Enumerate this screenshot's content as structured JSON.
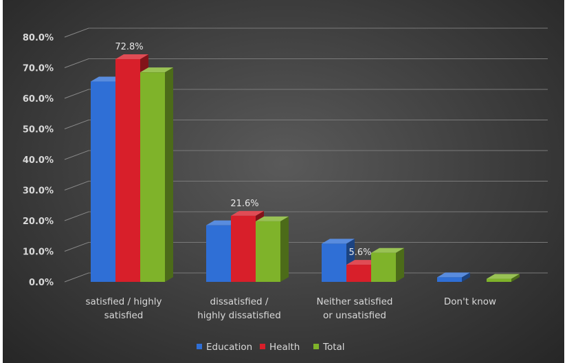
{
  "chart_data": {
    "type": "bar",
    "categories": [
      [
        "satisfied / highly",
        "satisfied"
      ],
      [
        "dissatisfied /",
        "highly dissatisfied"
      ],
      [
        "Neither satisfied",
        "or unsatisfied"
      ],
      [
        "Don't know"
      ]
    ],
    "series": [
      {
        "name": "Education",
        "values": [
          65.5,
          18.5,
          12.5,
          1.5
        ],
        "color": "#2f6fd6"
      },
      {
        "name": "Health",
        "values": [
          72.8,
          21.6,
          5.6,
          0.0
        ],
        "color": "#d81f2a"
      },
      {
        "name": "Total",
        "values": [
          68.5,
          19.8,
          9.5,
          1.0
        ],
        "color": "#7fb32a"
      }
    ],
    "data_labels": [
      {
        "series": 1,
        "category": 0,
        "text": "72.8%"
      },
      {
        "series": 1,
        "category": 1,
        "text": "21.6%"
      },
      {
        "series": 1,
        "category": 2,
        "text": "5.6%"
      }
    ],
    "y_ticks": [
      "0.0%",
      "10.0%",
      "20.0%",
      "30.0%",
      "40.0%",
      "50.0%",
      "60.0%",
      "70.0%",
      "80.0%"
    ],
    "ylim": [
      0,
      80
    ],
    "grid": true,
    "legend_position": "bottom",
    "title": "",
    "xlabel": "",
    "ylabel": ""
  }
}
